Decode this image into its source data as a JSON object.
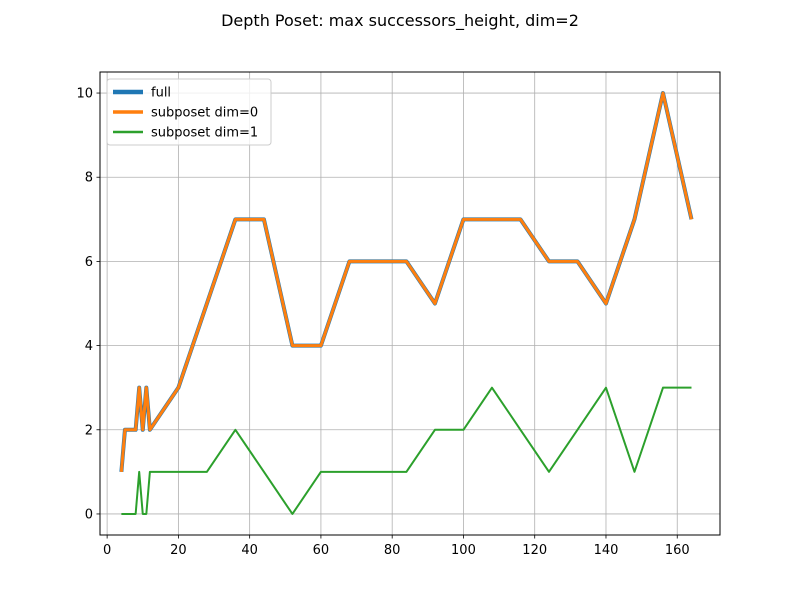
{
  "chart_data": {
    "type": "line",
    "title": "Depth Poset: max successors_height, dim=2",
    "xlabel": "",
    "ylabel": "",
    "xlim": [
      -2.0,
      172.0
    ],
    "ylim": [
      -0.5,
      10.5
    ],
    "xticks": [
      0,
      20,
      40,
      60,
      80,
      100,
      120,
      140,
      160
    ],
    "yticks": [
      0,
      2,
      4,
      6,
      8,
      10
    ],
    "grid": true,
    "legend_position": "top-left",
    "series": [
      {
        "name": "full",
        "color": "#1f77b4",
        "linewidth": 4,
        "x": [
          4,
          5,
          8,
          9,
          10,
          11,
          12,
          20,
          28,
          36,
          44,
          52,
          60,
          68,
          76,
          84,
          92,
          100,
          108,
          116,
          124,
          132,
          140,
          148,
          156,
          164
        ],
        "y": [
          1,
          2,
          2,
          3,
          2,
          3,
          2,
          3,
          5,
          7,
          7,
          4,
          4,
          6,
          6,
          6,
          5,
          7,
          7,
          7,
          6,
          6,
          5,
          7,
          10,
          7
        ]
      },
      {
        "name": "subposet dim=0",
        "color": "#ff7f0e",
        "linewidth": 3,
        "x": [
          4,
          5,
          8,
          9,
          10,
          11,
          12,
          20,
          28,
          36,
          44,
          52,
          60,
          68,
          76,
          84,
          92,
          100,
          108,
          116,
          124,
          132,
          140,
          148,
          156,
          164
        ],
        "y": [
          1,
          2,
          2,
          3,
          2,
          3,
          2,
          3,
          5,
          7,
          7,
          4,
          4,
          6,
          6,
          6,
          5,
          7,
          7,
          7,
          6,
          6,
          5,
          7,
          10,
          7
        ]
      },
      {
        "name": "subposet dim=1",
        "color": "#2ca02c",
        "linewidth": 2,
        "x": [
          4,
          8,
          9,
          10,
          11,
          12,
          20,
          28,
          36,
          44,
          52,
          60,
          68,
          76,
          84,
          92,
          100,
          108,
          116,
          124,
          132,
          140,
          148,
          156,
          164
        ],
        "y": [
          0,
          0,
          1,
          0,
          0,
          1,
          1,
          1,
          2,
          1,
          0,
          1,
          1,
          1,
          1,
          2,
          2,
          3,
          2,
          1,
          2,
          3,
          1,
          3,
          3
        ]
      }
    ]
  }
}
